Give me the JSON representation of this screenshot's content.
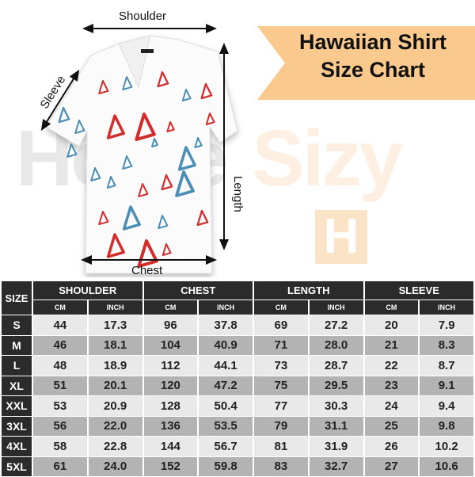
{
  "watermark": {
    "text_a": "Home",
    "text_b": "Sizy",
    "logo_letter": "H"
  },
  "banner": {
    "line1": "Hawaiian Shirt",
    "line2": "Size Chart",
    "color": "#fac98e"
  },
  "labels": {
    "shoulder": "Shoulder",
    "sleeve": "Sleeve",
    "length": "Length",
    "chest": "Chest"
  },
  "shirt": {
    "pattern_colors": [
      "#d42b2b",
      "#4a8db5"
    ]
  },
  "table": {
    "size_header": "SIZE",
    "groups": [
      "SHOULDER",
      "CHEST",
      "LENGTH",
      "SLEEVE"
    ],
    "units": [
      "CM",
      "INCH",
      "CM",
      "INCH",
      "CM",
      "INCH",
      "CM",
      "INCH"
    ],
    "rows": [
      {
        "size": "S",
        "values": [
          "44",
          "17.3",
          "96",
          "37.8",
          "69",
          "27.2",
          "20",
          "7.9"
        ]
      },
      {
        "size": "M",
        "values": [
          "46",
          "18.1",
          "104",
          "40.9",
          "71",
          "28.0",
          "21",
          "8.3"
        ]
      },
      {
        "size": "L",
        "values": [
          "48",
          "18.9",
          "112",
          "44.1",
          "73",
          "28.7",
          "22",
          "8.7"
        ]
      },
      {
        "size": "XL",
        "values": [
          "51",
          "20.1",
          "120",
          "47.2",
          "75",
          "29.5",
          "23",
          "9.1"
        ]
      },
      {
        "size": "XXL",
        "values": [
          "53",
          "20.9",
          "128",
          "50.4",
          "77",
          "30.3",
          "24",
          "9.4"
        ]
      },
      {
        "size": "3XL",
        "values": [
          "56",
          "22.0",
          "136",
          "53.5",
          "79",
          "31.1",
          "25",
          "9.8"
        ]
      },
      {
        "size": "4XL",
        "values": [
          "58",
          "22.8",
          "144",
          "56.7",
          "81",
          "31.9",
          "26",
          "10.2"
        ]
      },
      {
        "size": "5XL",
        "values": [
          "61",
          "24.0",
          "152",
          "59.8",
          "83",
          "32.7",
          "27",
          "10.6"
        ]
      }
    ]
  }
}
